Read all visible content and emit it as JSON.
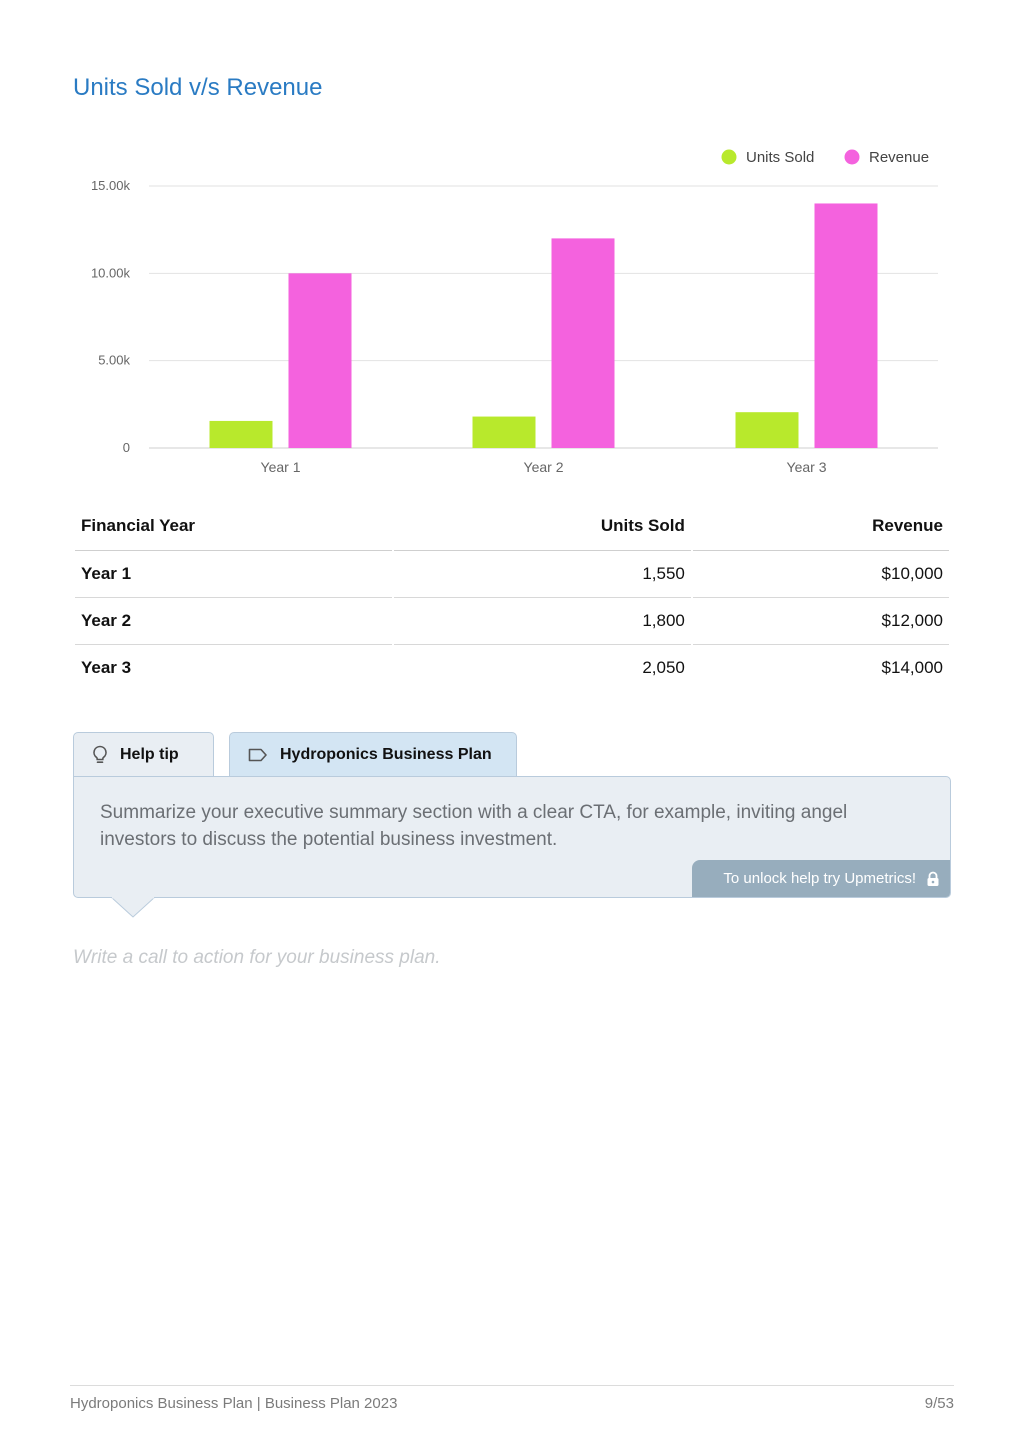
{
  "section": {
    "title": "Units Sold v/s Revenue"
  },
  "chart_data": {
    "type": "bar",
    "title": "",
    "categories": [
      "Year 1",
      "Year 2",
      "Year 3"
    ],
    "series": [
      {
        "name": "Units Sold",
        "values": [
          1550,
          1800,
          2050
        ],
        "color": "#b8e92c"
      },
      {
        "name": "Revenue",
        "values": [
          10000,
          12000,
          14000
        ],
        "color": "#f462de"
      }
    ],
    "yticks": [
      0,
      5000,
      10000,
      15000
    ],
    "ytick_labels": [
      "0",
      "5.00k",
      "10.00k",
      "15.00k"
    ],
    "ylim": [
      0,
      15000
    ],
    "grid": true,
    "legend": "top-right"
  },
  "table": {
    "headers": [
      "Financial Year",
      "Units Sold",
      "Revenue"
    ],
    "rows": [
      [
        "Year 1",
        "1,550",
        "$10,000"
      ],
      [
        "Year 2",
        "1,800",
        "$12,000"
      ],
      [
        "Year 3",
        "2,050",
        "$14,000"
      ]
    ]
  },
  "help": {
    "tab_help": "Help tip",
    "tab_plan": "Hydroponics Business Plan",
    "text": "Summarize your executive summary section with a clear CTA, for example, inviting angel investors to discuss the potential business investment.",
    "unlock": "To unlock help try Upmetrics!",
    "icons": {
      "help": "lightbulb-icon",
      "plan": "tag-icon",
      "unlock": "lock-icon"
    }
  },
  "editor": {
    "placeholder": "Write a call to action for your business plan."
  },
  "footer": {
    "left": "Hydroponics Business Plan | Business Plan 2023",
    "right": "9/53"
  }
}
